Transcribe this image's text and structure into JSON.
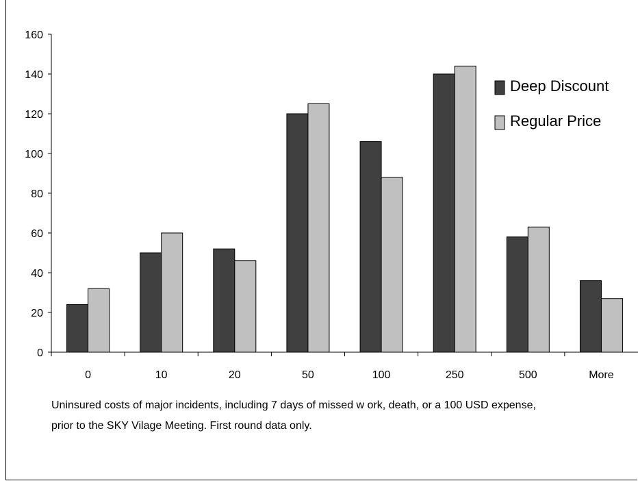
{
  "chart_data": {
    "type": "bar",
    "title": "",
    "xlabel": "",
    "ylabel": "",
    "categories": [
      "0",
      "10",
      "20",
      "50",
      "100",
      "250",
      "500",
      "More"
    ],
    "series": [
      {
        "name": "Deep Discount",
        "color": "#404040",
        "values": [
          24,
          50,
          52,
          120,
          106,
          140,
          58,
          36
        ]
      },
      {
        "name": "Regular Price",
        "color": "#c0c0c0",
        "values": [
          32,
          60,
          46,
          125,
          88,
          144,
          63,
          27
        ]
      }
    ],
    "ylim": [
      0,
      160
    ],
    "yticks": [
      0,
      20,
      40,
      60,
      80,
      100,
      120,
      140,
      160
    ],
    "grid": false,
    "legend_position": "top-right"
  },
  "caption": {
    "line1": "Uninsured costs of major incidents, including 7 days of missed w ork, death, or a 100 USD expense,",
    "line2": "prior to the SKY Vilage Meeting.  First round data only."
  }
}
